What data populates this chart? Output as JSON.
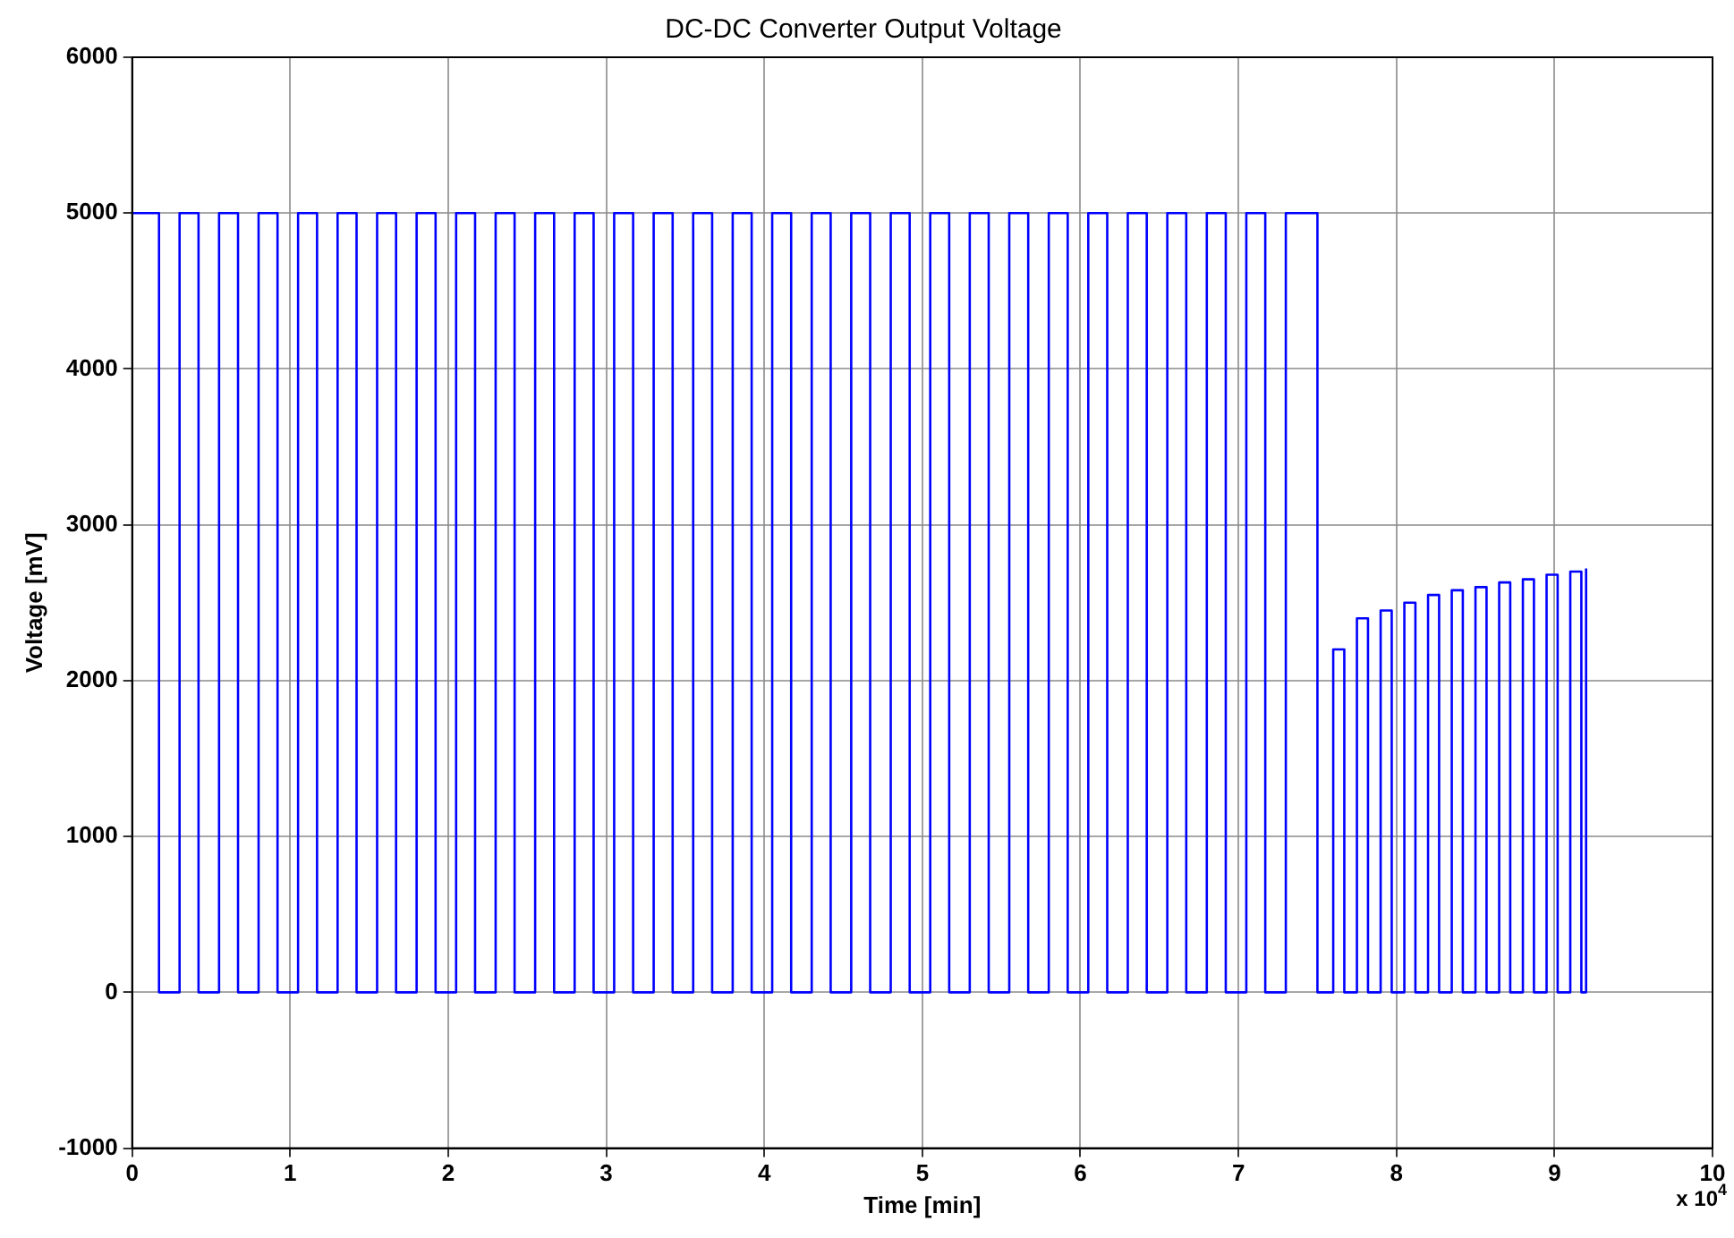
{
  "chart_data": {
    "type": "line",
    "title": "DC-DC Converter Output Voltage",
    "xlabel": "Time [min]",
    "ylabel": "Voltage [mV]",
    "annotations": [
      "x 10$^{4}$"
    ],
    "x": [
      0,
      0,
      0.17,
      0.17,
      0.3,
      0.3,
      0.42,
      0.42,
      0.55,
      0.55,
      0.67,
      0.67,
      0.8,
      0.8,
      0.92,
      0.92,
      1.05,
      1.05,
      1.17,
      1.17,
      1.3,
      1.3,
      1.42,
      1.42,
      1.55,
      1.55,
      1.67,
      1.67,
      1.8,
      1.8,
      1.92,
      1.92,
      2.05,
      2.05,
      2.17,
      2.17,
      2.3,
      2.3,
      2.42,
      2.42,
      2.55,
      2.55,
      2.67,
      2.67,
      2.8,
      2.8,
      2.92,
      2.92,
      3.05,
      3.05,
      3.17,
      3.17,
      3.3,
      3.3,
      3.42,
      3.42,
      3.55,
      3.55,
      3.67,
      3.67,
      3.8,
      3.8,
      3.92,
      3.92,
      4.05,
      4.05,
      4.17,
      4.17,
      4.3,
      4.3,
      4.42,
      4.42,
      4.55,
      4.55,
      4.67,
      4.67,
      4.8,
      4.8,
      4.92,
      4.92,
      5.05,
      5.05,
      5.17,
      5.17,
      5.3,
      5.3,
      5.42,
      5.42,
      5.55,
      5.55,
      5.67,
      5.67,
      5.8,
      5.8,
      5.92,
      5.92,
      6.05,
      6.05,
      6.17,
      6.17,
      6.3,
      6.3,
      6.42,
      6.42,
      6.55,
      6.55,
      6.67,
      6.67,
      6.8,
      6.8,
      6.92,
      6.92,
      7.05,
      7.05,
      7.17,
      7.17,
      7.3,
      7.3,
      7.5,
      7.5,
      7.6,
      7.6,
      7.67,
      7.67,
      7.75,
      7.75,
      7.82,
      7.82,
      7.9,
      7.9,
      7.97,
      7.97,
      8.05,
      8.05,
      8.12,
      8.12,
      8.2,
      8.2,
      8.27,
      8.27,
      8.35,
      8.35,
      8.42,
      8.42,
      8.5,
      8.5,
      8.57,
      8.57,
      8.65,
      8.65,
      8.72,
      8.72,
      8.8,
      8.8,
      8.87,
      8.87,
      8.95,
      8.95,
      9.02,
      9.02,
      9.1,
      9.1,
      9.17,
      9.17,
      9.2,
      9.2
    ],
    "series": [
      {
        "color": "#0000ff",
        "values": [
          5000,
          5000,
          5000,
          0,
          0,
          5000,
          5000,
          0,
          0,
          5000,
          5000,
          0,
          0,
          5000,
          5000,
          0,
          0,
          5000,
          5000,
          0,
          0,
          5000,
          5000,
          0,
          0,
          5000,
          5000,
          0,
          0,
          5000,
          5000,
          0,
          0,
          5000,
          5000,
          0,
          0,
          5000,
          5000,
          0,
          0,
          5000,
          5000,
          0,
          0,
          5000,
          5000,
          0,
          0,
          5000,
          5000,
          0,
          0,
          5000,
          5000,
          0,
          0,
          5000,
          5000,
          0,
          0,
          5000,
          5000,
          0,
          0,
          5000,
          5000,
          0,
          0,
          5000,
          5000,
          0,
          0,
          5000,
          5000,
          0,
          0,
          5000,
          5000,
          0,
          0,
          5000,
          5000,
          0,
          0,
          5000,
          5000,
          0,
          0,
          5000,
          5000,
          0,
          0,
          5000,
          5000,
          0,
          0,
          5000,
          5000,
          0,
          0,
          5000,
          5000,
          0,
          0,
          5000,
          5000,
          0,
          0,
          5000,
          5000,
          0,
          0,
          5000,
          5000,
          0,
          0,
          5000,
          5000,
          0,
          0,
          2200,
          2200,
          0,
          0,
          2400,
          2400,
          0,
          0,
          2450,
          2450,
          0,
          0,
          2500,
          2500,
          0,
          0,
          2550,
          2550,
          0,
          0,
          2580,
          2580,
          0,
          0,
          2600,
          2600,
          0,
          0,
          2630,
          2630,
          0,
          0,
          2650,
          2650,
          0,
          0,
          2680,
          2680,
          0,
          0,
          2700,
          2700,
          0,
          0,
          2720
        ]
      }
    ],
    "xlim": [
      0,
      10
    ],
    "xticks": [
      0,
      1,
      2,
      3,
      4,
      5,
      6,
      7,
      8,
      9,
      10
    ],
    "ylim": [
      -1000,
      6000
    ],
    "yticks": [
      -1000,
      0,
      1000,
      2000,
      3000,
      4000,
      5000,
      6000
    ],
    "grid": true,
    "marker": "none",
    "line_style": "solid",
    "legend": false
  }
}
